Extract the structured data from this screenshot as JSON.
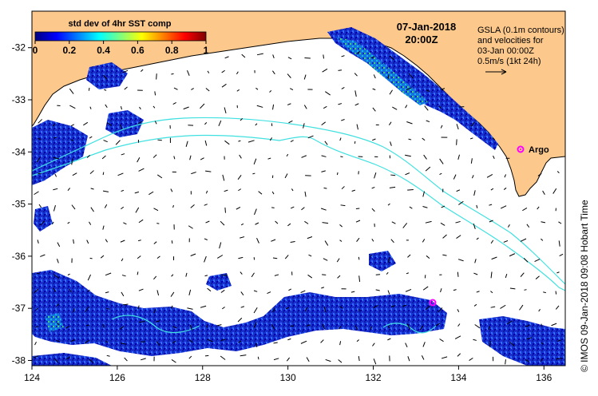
{
  "colorbar": {
    "title": "std dev of 4hr SST comp",
    "ticks": [
      "0",
      "0.2",
      "0.4",
      "0.6",
      "0.8",
      "1"
    ],
    "colors": [
      "#00007f",
      "#0000ff",
      "#007fff",
      "#00ffff",
      "#7fff7f",
      "#ffff00",
      "#ff7f00",
      "#ff0000",
      "#7f0000"
    ]
  },
  "header": {
    "date": "07-Jan-2018",
    "time": "20:00Z"
  },
  "info": {
    "line1": "GSLA (0.1m contours)",
    "line2": "and velocities for",
    "line3": "03-Jan 00:00Z",
    "line4": "0.5m/s (1kt 24h)"
  },
  "argo": {
    "label": "Argo",
    "color": "#ff00ff"
  },
  "axes": {
    "x_ticks": [
      "124",
      "126",
      "128",
      "130",
      "132",
      "134",
      "136"
    ],
    "y_ticks": [
      "-32",
      "-33",
      "-34",
      "-35",
      "-36",
      "-37",
      "-38"
    ],
    "x_range": [
      124,
      136.5
    ],
    "y_range": [
      -38.1,
      -31.3
    ]
  },
  "credit": "© IMOS 09-Jan-2018 09:08 Hobart Time",
  "colors": {
    "land": "#fcc88c",
    "contour": "#40e0e0",
    "ocean": "#ffffff"
  }
}
